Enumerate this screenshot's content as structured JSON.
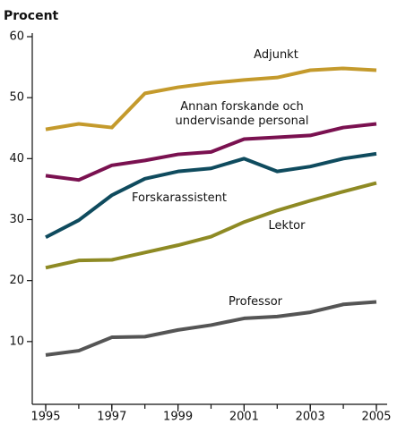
{
  "chart_data": {
    "type": "line",
    "ylabel": "Procent",
    "x": [
      1995,
      1996,
      1997,
      1998,
      1999,
      2000,
      2001,
      2002,
      2003,
      2004,
      2005
    ],
    "xlim": [
      1995,
      2005
    ],
    "xticks": [
      1995,
      1997,
      1999,
      2001,
      2003,
      2005
    ],
    "ylim": [
      0,
      60
    ],
    "yticks": [
      10,
      20,
      30,
      40,
      50,
      60
    ],
    "series": [
      {
        "name": "Adjunkt",
        "color": "#c49a2c",
        "values": [
          44.8,
          45.7,
          45.1,
          50.7,
          51.7,
          52.4,
          52.9,
          53.3,
          54.5,
          54.8,
          54.5
        ]
      },
      {
        "name": "Annan forskande och undervisande personal",
        "color": "#7a1150",
        "values": [
          37.2,
          36.5,
          38.9,
          39.7,
          40.7,
          41.1,
          43.2,
          43.5,
          43.8,
          45.1,
          45.7
        ]
      },
      {
        "name": "Forskarassistent",
        "color": "#0f4b5e",
        "values": [
          27.1,
          29.9,
          34.0,
          36.7,
          37.9,
          38.4,
          40.0,
          37.9,
          38.7,
          40.0,
          40.8
        ]
      },
      {
        "name": "Lektor",
        "color": "#8e8a24",
        "values": [
          22.1,
          23.3,
          23.4,
          24.6,
          25.8,
          27.2,
          29.6,
          31.5,
          33.1,
          34.6,
          36.0
        ]
      },
      {
        "name": "Professor",
        "color": "#555555",
        "values": [
          7.8,
          8.5,
          10.7,
          10.8,
          11.9,
          12.7,
          13.8,
          14.1,
          14.8,
          16.1,
          16.5
        ]
      }
    ]
  }
}
